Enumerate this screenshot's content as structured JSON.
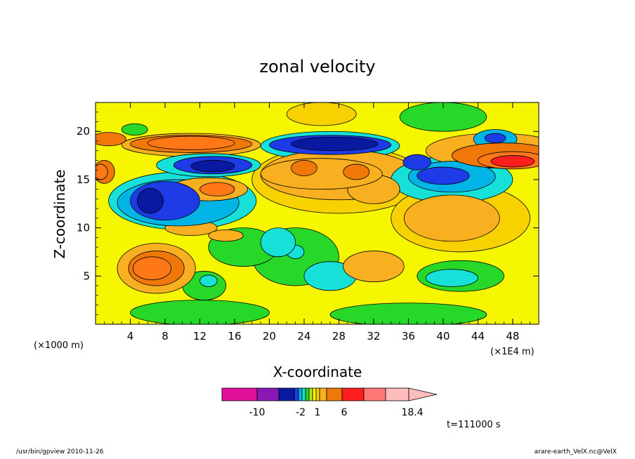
{
  "chart_data": {
    "type": "heatmap",
    "title": "zonal velocity",
    "xlabel": "X-coordinate",
    "ylabel": "Z-coordinate",
    "x_unit_left": "(×1000 m)",
    "x_unit_right": "(×1E4 m)",
    "x_ticks": [
      "4",
      "8",
      "12",
      "16",
      "20",
      "24",
      "28",
      "32",
      "36",
      "40",
      "44",
      "48"
    ],
    "y_ticks": [
      "5",
      "10",
      "15",
      "20"
    ],
    "xlim": [
      0,
      51
    ],
    "ylim": [
      0,
      23
    ],
    "colorbar": {
      "colors": [
        "#e0109a",
        "#8a18b4",
        "#0a1aa0",
        "#1d3ce8",
        "#00b4e6",
        "#17e0d8",
        "#28d828",
        "#b8e820",
        "#f6f600",
        "#f8d200",
        "#f8b020",
        "#f07808",
        "#ff1e1e",
        "#ff7878",
        "#ffbcbc"
      ],
      "labels": [
        "-10",
        "-2",
        "1",
        "6",
        "18.4"
      ],
      "max_label": "18.4"
    },
    "time_label": "t=111000 s",
    "features": [
      {
        "cx": 7,
        "cy": 5.8,
        "rx": 4.5,
        "ry": 2.6,
        "level": 3
      },
      {
        "cx": 7,
        "cy": 5.8,
        "rx": 3.2,
        "ry": 1.8,
        "level": 4
      },
      {
        "cx": 6.5,
        "cy": 5.8,
        "rx": 2.2,
        "ry": 1.2,
        "level": 5
      },
      {
        "cx": 10,
        "cy": 12.8,
        "rx": 8.5,
        "ry": 3.0,
        "level": -2
      },
      {
        "cx": 9.5,
        "cy": 12.6,
        "rx": 7.0,
        "ry": 2.4,
        "level": -3
      },
      {
        "cx": 8,
        "cy": 12.8,
        "rx": 4.0,
        "ry": 2.0,
        "level": -4
      },
      {
        "cx": 6.3,
        "cy": 12.8,
        "rx": 1.5,
        "ry": 1.3,
        "level": -5
      },
      {
        "cx": 13,
        "cy": 14.0,
        "rx": 4.5,
        "ry": 1.2,
        "level": 3
      },
      {
        "cx": 14,
        "cy": 14.0,
        "rx": 2.0,
        "ry": 0.7,
        "level": 5
      },
      {
        "cx": 11,
        "cy": 18.6,
        "rx": 8.0,
        "ry": 1.2,
        "level": 2
      },
      {
        "cx": 11,
        "cy": 18.7,
        "rx": 7.0,
        "ry": 0.9,
        "level": 4
      },
      {
        "cx": 11,
        "cy": 18.8,
        "rx": 5.0,
        "ry": 0.7,
        "level": 5
      },
      {
        "cx": 13,
        "cy": 16.5,
        "rx": 6.0,
        "ry": 1.2,
        "level": -2
      },
      {
        "cx": 13.5,
        "cy": 16.5,
        "rx": 4.5,
        "ry": 0.9,
        "level": -4
      },
      {
        "cx": 13.5,
        "cy": 16.4,
        "rx": 2.5,
        "ry": 0.6,
        "level": -5
      },
      {
        "cx": 1,
        "cy": 15.8,
        "rx": 1.2,
        "ry": 1.2,
        "level": 4
      },
      {
        "cx": 0.6,
        "cy": 15.8,
        "rx": 0.8,
        "ry": 0.8,
        "level": 5
      },
      {
        "cx": 1.5,
        "cy": 19.2,
        "rx": 2.0,
        "ry": 0.7,
        "level": 4
      },
      {
        "cx": 27,
        "cy": 18.5,
        "rx": 8.0,
        "ry": 1.5,
        "level": -2
      },
      {
        "cx": 27,
        "cy": 18.6,
        "rx": 7.0,
        "ry": 1.0,
        "level": -4
      },
      {
        "cx": 27.5,
        "cy": 18.7,
        "rx": 5.0,
        "ry": 0.7,
        "level": -5
      },
      {
        "cx": 28,
        "cy": 15.0,
        "rx": 10.0,
        "ry": 3.5,
        "level": 1
      },
      {
        "cx": 28,
        "cy": 15.5,
        "rx": 9.0,
        "ry": 2.6,
        "level": 2
      },
      {
        "cx": 26,
        "cy": 15.6,
        "rx": 7.0,
        "ry": 1.6,
        "level": 3
      },
      {
        "cx": 24,
        "cy": 16.2,
        "rx": 1.5,
        "ry": 0.8,
        "level": 4
      },
      {
        "cx": 30,
        "cy": 15.8,
        "rx": 1.5,
        "ry": 0.8,
        "level": 4
      },
      {
        "cx": 46,
        "cy": 18.0,
        "rx": 8.0,
        "ry": 1.8,
        "level": 3
      },
      {
        "cx": 47,
        "cy": 17.5,
        "rx": 6.0,
        "ry": 1.3,
        "level": 4
      },
      {
        "cx": 48,
        "cy": 17.0,
        "rx": 4.0,
        "ry": 0.9,
        "level": 5
      },
      {
        "cx": 48,
        "cy": 16.9,
        "rx": 2.5,
        "ry": 0.6,
        "level": 6
      },
      {
        "cx": 41,
        "cy": 15.0,
        "rx": 7.0,
        "ry": 2.4,
        "level": -2
      },
      {
        "cx": 41,
        "cy": 15.3,
        "rx": 5.0,
        "ry": 1.6,
        "level": -3
      },
      {
        "cx": 40,
        "cy": 15.4,
        "rx": 3.0,
        "ry": 0.9,
        "level": -4
      },
      {
        "cx": 37,
        "cy": 16.8,
        "rx": 1.6,
        "ry": 0.8,
        "level": -4
      },
      {
        "cx": 46,
        "cy": 19.2,
        "rx": 2.5,
        "ry": 1.0,
        "level": -3
      },
      {
        "cx": 46,
        "cy": 19.3,
        "rx": 1.2,
        "ry": 0.5,
        "level": -4
      },
      {
        "cx": 42,
        "cy": 11.0,
        "rx": 8.0,
        "ry": 3.5,
        "level": 1
      },
      {
        "cx": 41,
        "cy": 11.0,
        "rx": 5.5,
        "ry": 2.4,
        "level": 2
      },
      {
        "cx": 42,
        "cy": 5.0,
        "rx": 5.0,
        "ry": 1.6,
        "level": 0
      },
      {
        "cx": 41,
        "cy": 4.8,
        "rx": 3.0,
        "ry": 0.9,
        "level": -1
      },
      {
        "cx": 27,
        "cy": 5.0,
        "rx": 3.0,
        "ry": 1.5,
        "level": -1
      },
      {
        "cx": 32,
        "cy": 6.0,
        "rx": 3.5,
        "ry": 1.6,
        "level": 2
      },
      {
        "cx": 23,
        "cy": 7.0,
        "rx": 5.0,
        "ry": 3.0,
        "level": 0
      },
      {
        "cx": 23,
        "cy": 7.5,
        "rx": 1.0,
        "ry": 0.7,
        "level": -1
      },
      {
        "cx": 21,
        "cy": 8.5,
        "rx": 2.0,
        "ry": 1.5,
        "level": -1
      },
      {
        "cx": 17,
        "cy": 8.0,
        "rx": 4.0,
        "ry": 2.0,
        "level": 0
      },
      {
        "cx": 12.5,
        "cy": 4.0,
        "rx": 2.5,
        "ry": 1.5,
        "level": 0
      },
      {
        "cx": 13,
        "cy": 4.5,
        "rx": 1.0,
        "ry": 0.6,
        "level": -1
      },
      {
        "cx": 12,
        "cy": 1.2,
        "rx": 8.0,
        "ry": 1.3,
        "level": 0
      },
      {
        "cx": 36,
        "cy": 1.0,
        "rx": 9.0,
        "ry": 1.2,
        "level": 0
      },
      {
        "cx": 40,
        "cy": 21.5,
        "rx": 5.0,
        "ry": 1.5,
        "level": 0
      },
      {
        "cx": 4.5,
        "cy": 20.2,
        "rx": 1.5,
        "ry": 0.6,
        "level": 0
      },
      {
        "cx": 26,
        "cy": 21.8,
        "rx": 4.0,
        "ry": 1.2,
        "level": 1
      },
      {
        "cx": 11,
        "cy": 10.0,
        "rx": 3.0,
        "ry": 0.8,
        "level": 2
      },
      {
        "cx": 15,
        "cy": 9.2,
        "rx": 2.0,
        "ry": 0.6,
        "level": 2
      },
      {
        "cx": 32,
        "cy": 14.0,
        "rx": 3.0,
        "ry": 1.5,
        "level": 2
      }
    ]
  },
  "footer": {
    "left": "/usr/bin/gpview   2010-11-26",
    "right": "arare-earth_VelX.nc@VelX"
  }
}
